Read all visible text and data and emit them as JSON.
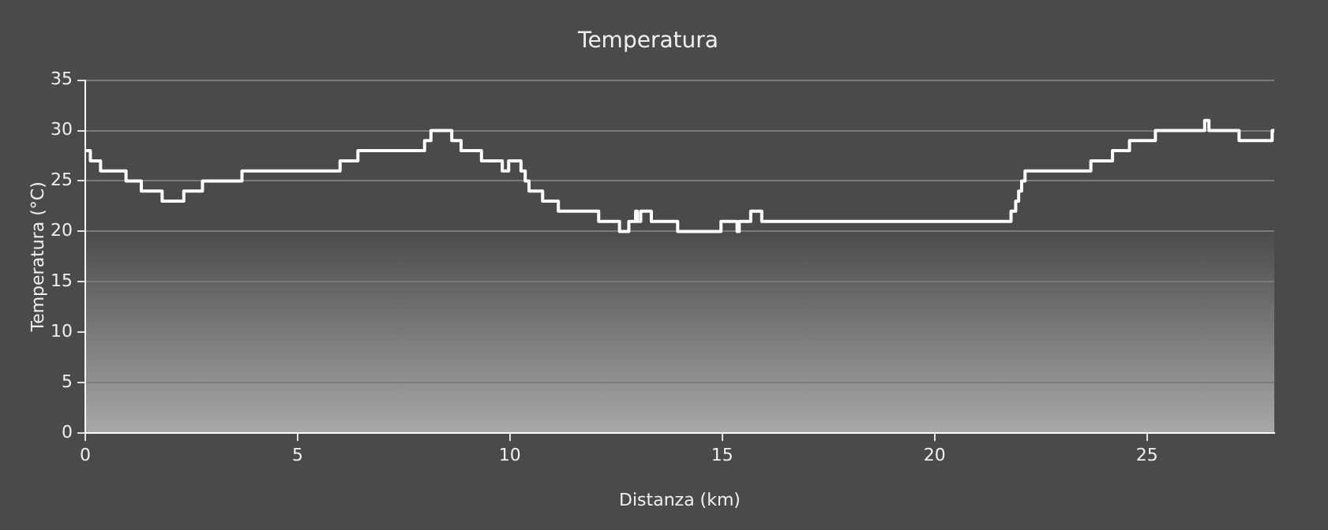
{
  "chart_data": {
    "type": "step",
    "title": "Temperatura",
    "xlabel": "Distanza (km)",
    "ylabel": "Temperatura (°C)",
    "x": [
      0,
      0.12,
      0.36,
      0.96,
      1.32,
      1.81,
      2.32,
      2.76,
      3.69,
      6.0,
      6.42,
      7.99,
      8.14,
      8.63,
      8.85,
      9.33,
      9.82,
      9.97,
      10.26,
      10.36,
      10.45,
      10.77,
      11.14,
      12.09,
      12.58,
      12.8,
      12.96,
      13.0,
      13.08,
      13.33,
      13.95,
      14.97,
      15.35,
      15.4,
      15.67,
      15.93,
      21.8,
      21.91,
      21.98,
      22.05,
      22.13,
      23.68,
      24.19,
      24.59,
      25.2,
      26.36,
      26.46,
      27.17,
      27.95,
      28
    ],
    "series": [
      {
        "color": "#ffffff",
        "values": [
          28,
          27,
          26,
          25,
          24,
          23,
          24,
          25,
          26,
          27,
          28,
          29,
          30,
          29,
          28,
          27,
          26,
          27,
          26,
          25,
          24,
          23,
          22,
          21,
          20,
          21,
          22,
          21,
          22,
          21,
          20,
          21,
          20,
          21,
          22,
          21,
          22,
          23,
          24,
          25,
          26,
          27,
          28,
          29,
          30,
          31,
          30,
          29,
          30,
          30
        ]
      }
    ],
    "xlim": [
      0,
      28
    ],
    "xticks": [
      0,
      5,
      10,
      15,
      20,
      25
    ],
    "ylim": [
      0,
      35
    ],
    "yticks": [
      0,
      5,
      10,
      15,
      20,
      25,
      30,
      35
    ],
    "grid": "y",
    "legend": false,
    "marker": "none",
    "line_style": "solid"
  }
}
